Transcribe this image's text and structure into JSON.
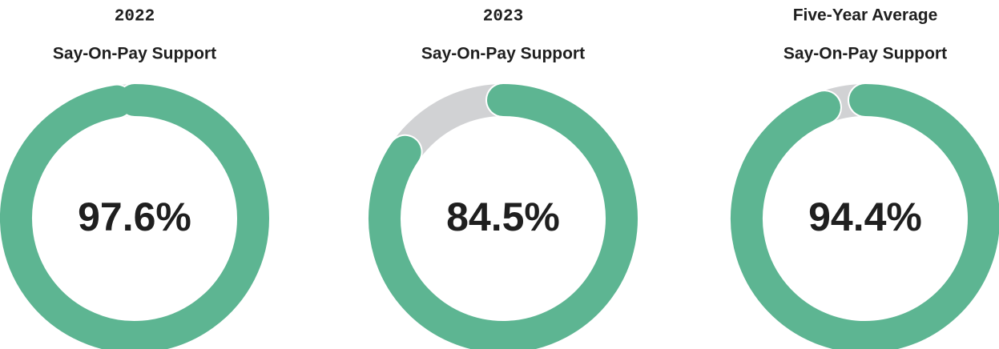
{
  "chart_data": [
    {
      "type": "donut",
      "title": "2022",
      "subtitle": "Say-On-Pay Support",
      "values": [
        97.6,
        2.4
      ],
      "value_labels": [
        "97.6%",
        null
      ],
      "colors": [
        "#5db592",
        "#d1d2d4"
      ]
    },
    {
      "type": "donut",
      "title": "2023",
      "subtitle": "Say-On-Pay Support",
      "values": [
        84.5,
        15.5
      ],
      "value_labels": [
        "84.5%",
        null
      ],
      "colors": [
        "#5db592",
        "#d1d2d4"
      ]
    },
    {
      "type": "donut",
      "title": "Five-Year Average",
      "subtitle": "Say-On-Pay Support",
      "values": [
        94.4,
        5.6
      ],
      "value_labels": [
        "94.4%",
        null
      ],
      "colors": [
        "#5db592",
        "#d1d2d4"
      ]
    }
  ]
}
